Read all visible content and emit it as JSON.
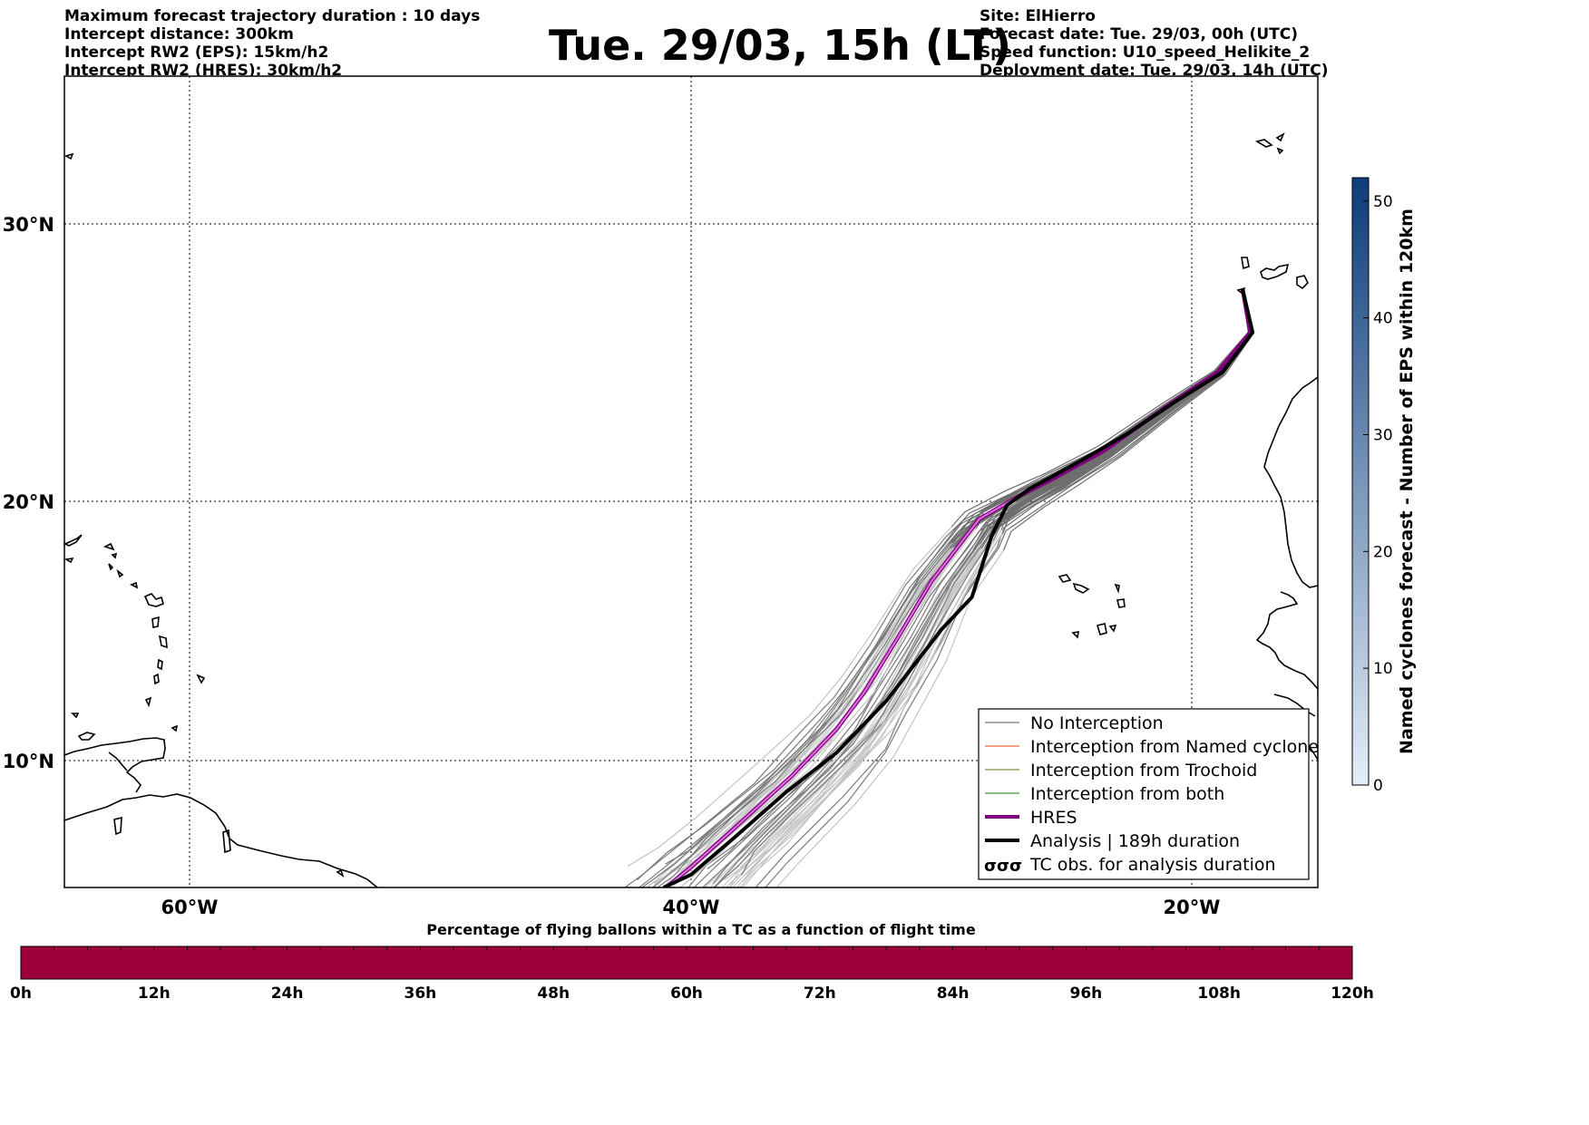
{
  "header": {
    "left": [
      "Maximum forecast trajectory duration : 10 days",
      "Intercept distance: 300km",
      "Intercept RW2 (EPS):  15km/h2",
      "Intercept RW2 (HRES): 30km/h2"
    ],
    "title": "Tue. 29/03, 15h (LT)",
    "right": [
      "Site: ElHierro",
      "Forecast date: Tue. 29/03, 00h (UTC)",
      "Speed function: U10_speed_Helikite_2",
      "Deployment date: Tue. 29/03, 14h (UTC)"
    ]
  },
  "map": {
    "lon_labels": [
      "60°W",
      "40°W",
      "20°W"
    ],
    "lat_labels": [
      "30°N",
      "20°N",
      "10°N"
    ],
    "lon_range": [
      -65,
      -15
    ],
    "lat_range": [
      5.5,
      34.8
    ],
    "grid": true,
    "deployment_site": {
      "lon": -18.0,
      "lat": 27.7
    }
  },
  "legend": {
    "items": [
      {
        "label": "No Interception",
        "color": "#777777"
      },
      {
        "label": "Interception from Named cyclone",
        "color": "#e06a3a"
      },
      {
        "label": "Interception from Trochoid",
        "color": "#8b8b3a"
      },
      {
        "label": "Interception from both",
        "color": "#3a9a3a"
      },
      {
        "label": "HRES",
        "color": "#800080"
      },
      {
        "label": "Analysis | 189h duration",
        "color": "#000000"
      },
      {
        "label": "TC obs. for analysis duration",
        "color": "#000000",
        "symbol": "σσσ"
      }
    ]
  },
  "colorbar_right": {
    "label": "Named cyclones forecast - Number of EPS within 120km",
    "ticks": [
      "0",
      "10",
      "20",
      "30",
      "40",
      "50"
    ],
    "range": [
      0,
      52
    ],
    "color_low": "#e4eef8",
    "color_high": "#0c3c7a"
  },
  "colorbar_bottom": {
    "label": "Percentage of flying ballons within a TC as a function of flight time",
    "ticks": [
      "0h",
      "12h",
      "24h",
      "36h",
      "48h",
      "60h",
      "72h",
      "84h",
      "96h",
      "108h",
      "120h"
    ],
    "fill_color": "#9e0039"
  },
  "tracks": {
    "analysis": [
      [
        -18.0,
        27.7
      ],
      [
        -17.6,
        26.2
      ],
      [
        -18.8,
        24.8
      ],
      [
        -20.6,
        23.8
      ],
      [
        -22.6,
        22.6
      ],
      [
        -24.5,
        21.6
      ],
      [
        -26.5,
        20.6
      ],
      [
        -27.4,
        20.0
      ],
      [
        -28.0,
        18.9
      ],
      [
        -28.8,
        16.6
      ],
      [
        -30.0,
        15.4
      ],
      [
        -32.2,
        12.7
      ],
      [
        -34.2,
        10.7
      ],
      [
        -36.2,
        9.2
      ],
      [
        -38.2,
        7.5
      ],
      [
        -40.0,
        6.0
      ],
      [
        -41.1,
        5.5
      ]
    ],
    "hres": [
      [
        -18.0,
        27.7
      ],
      [
        -17.7,
        26.2
      ],
      [
        -19.0,
        24.8
      ],
      [
        -21.0,
        23.6
      ],
      [
        -23.5,
        22.0
      ],
      [
        -25.5,
        21.0
      ],
      [
        -27.0,
        20.3
      ],
      [
        -28.5,
        19.5
      ],
      [
        -29.0,
        18.9
      ],
      [
        -30.4,
        17.2
      ],
      [
        -31.8,
        15.0
      ],
      [
        -33.1,
        13.0
      ],
      [
        -34.2,
        11.6
      ],
      [
        -36.0,
        9.8
      ],
      [
        -38.5,
        7.6
      ],
      [
        -40.0,
        6.3
      ],
      [
        -41.0,
        5.5
      ]
    ]
  }
}
